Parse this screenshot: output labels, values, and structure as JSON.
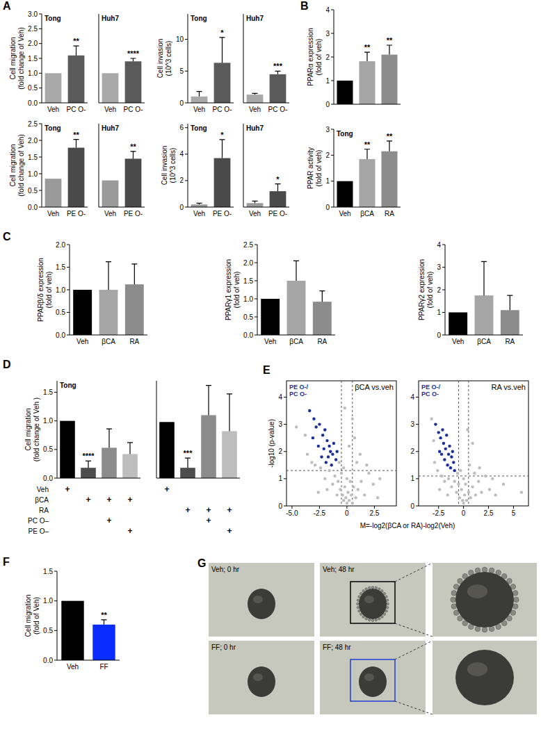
{
  "panel_labels": [
    "A",
    "B",
    "C",
    "D",
    "E",
    "F",
    "G"
  ],
  "chart_data": [
    {
      "type": "bar",
      "categories": [
        "Veh",
        "PC O-"
      ],
      "values": [
        1.0,
        1.6
      ],
      "errors": [
        null,
        0.32
      ],
      "significance": [
        null,
        "**"
      ],
      "colors": [
        "#a9a9a9",
        "#5a5a5a"
      ],
      "ylim": [
        0,
        3
      ],
      "yticks": [
        {
          "value": 0,
          "label": "0.0"
        },
        0.5,
        {
          "value": 1,
          "label": "1.0"
        },
        1.5,
        {
          "value": 2,
          "label": "2.0"
        },
        2.5,
        {
          "value": 3,
          "label": "3.0"
        }
      ],
      "y_label": [
        "Cell migration",
        "(fold change of Veh)"
      ],
      "annotation": "Tong"
    },
    {
      "type": "bar",
      "categories": [
        "Veh",
        "PC O-"
      ],
      "values": [
        1.0,
        1.4
      ],
      "errors": [
        null,
        0.1
      ],
      "significance": [
        null,
        "****"
      ],
      "colors": [
        "#a9a9a9",
        "#5a5a5a"
      ],
      "ylim": [
        0,
        3
      ],
      "tick_labels": "x",
      "annotation": "Huh7"
    },
    {
      "type": "bar",
      "categories": [
        "Veh",
        "PC O-"
      ],
      "values": [
        1.0,
        6.3
      ],
      "errors": [
        0.8,
        4.0
      ],
      "significance": [
        null,
        "*"
      ],
      "colors": [
        "#a9a9a9",
        "#5a5a5a"
      ],
      "ylim": [
        0,
        14
      ],
      "yticks": [
        0,
        5,
        10
      ],
      "y_label": [
        "Cell invasion",
        "(10^3 cells)"
      ],
      "annotation": "Tong"
    },
    {
      "type": "bar",
      "categories": [
        "Veh",
        "PC O-"
      ],
      "values": [
        1.3,
        4.5
      ],
      "errors": [
        0.2,
        0.5
      ],
      "significance": [
        null,
        "***"
      ],
      "colors": [
        "#a9a9a9",
        "#5a5a5a"
      ],
      "ylim": [
        0,
        14
      ],
      "tick_labels": "x",
      "annotation": "Huh7"
    },
    {
      "type": "bar",
      "categories": [
        "Veh",
        "PE O-"
      ],
      "values": [
        0.85,
        1.78
      ],
      "errors": [
        null,
        0.25
      ],
      "significance": [
        null,
        "**"
      ],
      "colors": [
        "#9a9a9a",
        "#4a4a4a"
      ],
      "ylim": [
        0,
        2.5
      ],
      "yticks": [
        {
          "value": 0,
          "label": "0.0"
        },
        0.5,
        {
          "value": 1,
          "label": "1.0"
        },
        1.5,
        {
          "value": 2,
          "label": "2.0"
        },
        2.5
      ],
      "y_label": [
        "Cell migration",
        "(fold change of Veh)"
      ],
      "annotation": "Tong"
    },
    {
      "type": "bar",
      "categories": [
        "Veh",
        "PE O-"
      ],
      "values": [
        0.8,
        1.45
      ],
      "errors": [
        null,
        0.22
      ],
      "significance": [
        null,
        "**"
      ],
      "colors": [
        "#9a9a9a",
        "#4a4a4a"
      ],
      "ylim": [
        0,
        2.5
      ],
      "tick_labels": "x",
      "annotation": "Huh7"
    },
    {
      "type": "bar",
      "categories": [
        "Veh",
        "PE O-"
      ],
      "values": [
        0.2,
        3.7
      ],
      "errors": [
        0.1,
        1.4
      ],
      "significance": [
        null,
        "*"
      ],
      "colors": [
        "#9a9a9a",
        "#4a4a4a"
      ],
      "ylim": [
        0,
        6.3
      ],
      "yticks": [
        0,
        2,
        4,
        6
      ],
      "y_label": [
        "Cell invasion",
        "(10^3 cells)"
      ],
      "annotation": "Tong"
    },
    {
      "type": "bar",
      "categories": [
        "Veh",
        "PE O-"
      ],
      "values": [
        0.3,
        1.2
      ],
      "errors": [
        0.15,
        0.55
      ],
      "significance": [
        null,
        "*"
      ],
      "colors": [
        "#9a9a9a",
        "#4a4a4a"
      ],
      "ylim": [
        0,
        6.3
      ],
      "tick_labels": "x",
      "annotation": "Huh7"
    },
    {
      "type": "bar",
      "categories": [
        "Veh",
        "βCA",
        "RA"
      ],
      "values": [
        1.0,
        1.82,
        2.1
      ],
      "errors": [
        null,
        0.38,
        0.4
      ],
      "significance": [
        null,
        "**",
        "**"
      ],
      "colors": [
        "#000000",
        "#a6a6a6",
        "#8c8c8c"
      ],
      "ylim": [
        0,
        4
      ],
      "yticks": [
        0,
        1,
        2,
        3,
        4
      ],
      "y_label": [
        "PPARα expression",
        "(fold of veh)"
      ],
      "tick_labels": "y"
    },
    {
      "type": "bar",
      "categories": [
        "Veh",
        "βCA",
        "RA"
      ],
      "values": [
        1.0,
        1.85,
        2.15
      ],
      "errors": [
        null,
        0.38,
        0.4
      ],
      "significance": [
        null,
        "**",
        "**"
      ],
      "colors": [
        "#000000",
        "#a6a6a6",
        "#8c8c8c"
      ],
      "ylim": [
        0,
        3
      ],
      "yticks": [
        0,
        1,
        2,
        3
      ],
      "y_label": [
        "PPAR activity",
        "(fold of veh)"
      ],
      "annotation": "Tong"
    },
    {
      "type": "bar",
      "categories": [
        "Veh",
        "βCA",
        "RA"
      ],
      "values": [
        1.0,
        1.0,
        1.12
      ],
      "errors": [
        null,
        0.62,
        0.45
      ],
      "colors": [
        "#000000",
        "#a6a6a6",
        "#8c8c8c"
      ],
      "ylim": [
        0,
        2
      ],
      "yticks": [
        {
          "value": 0,
          "label": "0.0"
        },
        0.5,
        {
          "value": 1,
          "label": "1.0"
        },
        1.5,
        {
          "value": 2,
          "label": "2.0"
        }
      ],
      "y_label": [
        "PPARβ/δ expression",
        "(fold of veh)"
      ]
    },
    {
      "type": "bar",
      "categories": [
        "Veh",
        "βCA",
        "RA"
      ],
      "values": [
        1.0,
        1.5,
        0.92
      ],
      "errors": [
        null,
        0.55,
        0.3
      ],
      "colors": [
        "#000000",
        "#a6a6a6",
        "#8c8c8c"
      ],
      "ylim": [
        0,
        2.5
      ],
      "yticks": [
        {
          "value": 0,
          "label": "0.0"
        },
        0.5,
        {
          "value": 1,
          "label": "1.0"
        },
        1.5,
        {
          "value": 2,
          "label": "2.0"
        },
        2.5
      ],
      "y_label": [
        "PPARγ1 expression",
        "(fold of veh)"
      ]
    },
    {
      "type": "bar",
      "categories": [
        "Veh",
        "βCA",
        "RA"
      ],
      "values": [
        1.0,
        1.75,
        1.1
      ],
      "errors": [
        null,
        1.5,
        0.65
      ],
      "colors": [
        "#000000",
        "#a6a6a6",
        "#8c8c8c"
      ],
      "ylim": [
        0,
        4
      ],
      "yticks": [
        0,
        1,
        2,
        3,
        4
      ],
      "y_label": [
        "PPARγ2 expression",
        "(fold of veh)"
      ]
    },
    {
      "type": "bar",
      "categories": [
        null,
        null,
        null,
        null
      ],
      "values": [
        1.0,
        0.18,
        0.53,
        0.42
      ],
      "errors": [
        null,
        0.12,
        0.33,
        0.2
      ],
      "significance": [
        null,
        "****",
        null,
        null
      ],
      "colors": [
        "#000000",
        "#4d4d4d",
        "#8c8c8c",
        "#bdbdbd"
      ],
      "ylim": [
        0,
        1.7
      ],
      "yticks": [
        {
          "value": 0,
          "label": "0.0"
        },
        0.5,
        {
          "value": 1,
          "label": "1.0"
        },
        1.5
      ],
      "y_label": [
        "Cell migration",
        "(fold change of Veh )"
      ],
      "tick_labels": "y",
      "annotation": "Tong",
      "design_rows": [
        "Veh",
        "βCA",
        "RA",
        "PC O–",
        "PE O–"
      ],
      "design": [
        [
          "+",
          null,
          null,
          null
        ],
        [
          null,
          "+",
          "+",
          "+"
        ],
        [
          null,
          null,
          null,
          null
        ],
        [
          null,
          null,
          "+",
          null
        ],
        [
          null,
          null,
          null,
          "+"
        ]
      ]
    },
    {
      "type": "bar",
      "categories": [
        null,
        null,
        null,
        null
      ],
      "values": [
        0.98,
        0.18,
        1.1,
        0.82
      ],
      "errors": [
        null,
        0.17,
        0.52,
        0.65
      ],
      "significance": [
        null,
        "***",
        null,
        null
      ],
      "colors": [
        "#000000",
        "#4d4d4d",
        "#8c8c8c",
        "#bdbdbd"
      ],
      "ylim": [
        0,
        1.7
      ],
      "tick_labels": false,
      "design": [
        [
          "+",
          null,
          null,
          null
        ],
        [
          null,
          null,
          null,
          null
        ],
        [
          null,
          "+",
          "+",
          "+"
        ],
        [
          null,
          null,
          "+",
          null
        ],
        [
          null,
          null,
          null,
          "+"
        ]
      ]
    },
    {
      "type": "scatter",
      "title": "βCA vs.veh",
      "xlim": [
        -5.5,
        4.5
      ],
      "xticks": [
        {
          "value": -5,
          "label": "-5.0"
        },
        -2.5,
        0,
        2.5
      ],
      "ylim": [
        0,
        4.6
      ],
      "yticks": [
        0,
        1,
        2,
        3,
        4
      ],
      "y_label": "-log10 (p-value)",
      "x_label": "M=-log2(βCA or RA)-log2(Veh)",
      "legend": "upper left",
      "vlines": [
        -0.5,
        0.5
      ],
      "hlines": [
        1.3
      ],
      "series": [
        {
          "color": "#bdbdbd",
          "x": [
            -4.6,
            -3.8,
            -3.6,
            -3.2,
            -2.9,
            -2.4,
            -2.0,
            -1.6,
            -1.3,
            -1.1,
            -0.8,
            -0.6,
            -0.5,
            -0.4,
            -0.3,
            -0.2,
            -0.1,
            0,
            0.1,
            0.2,
            0.3,
            0.4,
            0.5,
            0.6,
            0.8,
            1.0,
            1.3,
            1.6,
            2.0,
            2.4,
            3.0,
            0.9,
            1.2,
            0.7,
            0.5,
            -0.2,
            0.2,
            1.8,
            -0.7,
            -0.9,
            -1.8,
            -2.6,
            0.0,
            -0.3,
            2.8
          ],
          "values": [
            2.9,
            2.6,
            1.9,
            1.6,
            1.5,
            1.4,
            1.0,
            1.3,
            0.8,
            1.1,
            0.9,
            0.6,
            1.2,
            0.4,
            0.2,
            0.7,
            0.3,
            0.1,
            0.5,
            0.2,
            0.9,
            0.4,
            0.1,
            0.7,
            0.3,
            0.6,
            0.9,
            0.4,
            1.2,
            0.8,
            1.0,
            1.6,
            1.9,
            2.5,
            3.2,
            3.6,
            2.2,
            1.5,
            1.6,
            0.4,
            0.6,
            0.5,
            1.0,
            1.4,
            0.3
          ]
        },
        {
          "name": "PE O-/ PC O-",
          "color": "#1a2f9c",
          "x": [
            -3.4,
            -3.0,
            -2.8,
            -2.5,
            -2.2,
            -2.0,
            -1.8,
            -1.6,
            -1.5,
            -1.3,
            -1.2,
            -1.0,
            -2.6,
            -2.3,
            -1.9,
            -3.1,
            -1.4,
            -0.9,
            -2.1,
            -1.7
          ],
          "values": [
            3.5,
            3.2,
            2.9,
            3.0,
            2.6,
            2.8,
            2.4,
            2.2,
            2.0,
            1.9,
            2.3,
            1.7,
            2.2,
            1.8,
            1.6,
            2.5,
            1.5,
            2.0,
            2.1,
            1.8
          ]
        }
      ]
    },
    {
      "type": "scatter",
      "title": "RA vs.veh",
      "xlim": [
        -4.5,
        6.5
      ],
      "xticks": [
        -2.5,
        0,
        2.5,
        5
      ],
      "ylim": [
        0,
        4.6
      ],
      "yticks": [
        0,
        1,
        2,
        3,
        4
      ],
      "legend": "upper left",
      "vlines": [
        -0.5,
        0.5
      ],
      "hlines": [
        1.1
      ],
      "series": [
        {
          "color": "#bdbdbd",
          "x": [
            -3.2,
            -3.0,
            -2.9,
            -2.6,
            -2.2,
            -1.9,
            -1.5,
            -1.2,
            -0.9,
            -0.7,
            -0.5,
            -0.4,
            -0.2,
            -0.1,
            0,
            0.1,
            0.2,
            0.3,
            0.5,
            0.7,
            0.9,
            1.2,
            1.5,
            1.8,
            2.2,
            2.6,
            3.2,
            4.0,
            5.8,
            0.6,
            0.9,
            0.4,
            1.6,
            -0.6,
            -1.6,
            -2.4,
            0.0,
            -0.3,
            1.1,
            2.9
          ],
          "values": [
            3.2,
            2.4,
            1.6,
            1.3,
            1.1,
            0.9,
            1.0,
            0.7,
            0.9,
            0.5,
            0.8,
            0.3,
            0.6,
            0.2,
            0.1,
            0.4,
            0.8,
            0.2,
            0.5,
            0.3,
            0.7,
            0.4,
            0.9,
            0.5,
            1.1,
            0.6,
            0.4,
            0.8,
            0.5,
            1.5,
            2.3,
            2.8,
            1.4,
            1.2,
            0.4,
            0.6,
            1.0,
            1.3,
            1.2,
            1.0
          ]
        },
        {
          "name": "PE O-/ PC O-",
          "color": "#1a2f9c",
          "x": [
            -2.8,
            -2.5,
            -2.3,
            -2.1,
            -2.0,
            -1.8,
            -1.7,
            -1.5,
            -1.4,
            -1.2,
            -1.0,
            -2.4,
            -1.9,
            -1.6,
            -1.3,
            -2.2,
            -1.1,
            -0.9
          ],
          "values": [
            3.0,
            2.7,
            2.5,
            2.8,
            2.3,
            2.1,
            2.6,
            1.9,
            2.2,
            1.8,
            1.6,
            2.0,
            1.7,
            1.5,
            1.4,
            1.9,
            2.0,
            1.3
          ]
        }
      ]
    },
    {
      "type": "bar",
      "categories": [
        "Veh",
        "FF"
      ],
      "values": [
        1.0,
        0.6
      ],
      "errors": [
        null,
        0.08
      ],
      "significance": [
        null,
        "**"
      ],
      "colors": [
        "#000000",
        "#0a2cff"
      ],
      "ylim": [
        0,
        1.5
      ],
      "yticks": [
        {
          "value": 0,
          "label": "0.0"
        },
        0.5,
        {
          "value": 1,
          "label": "1.0"
        },
        1.5
      ],
      "y_label": [
        "Cell migration",
        "(fold of Veh)"
      ]
    }
  ],
  "images": [
    {
      "label": "Veh; 0 hr"
    },
    {
      "label": "Veh; 48 hr"
    },
    {
      "label": "FF; 0 hr"
    },
    {
      "label": "FF; 48 hr"
    }
  ]
}
